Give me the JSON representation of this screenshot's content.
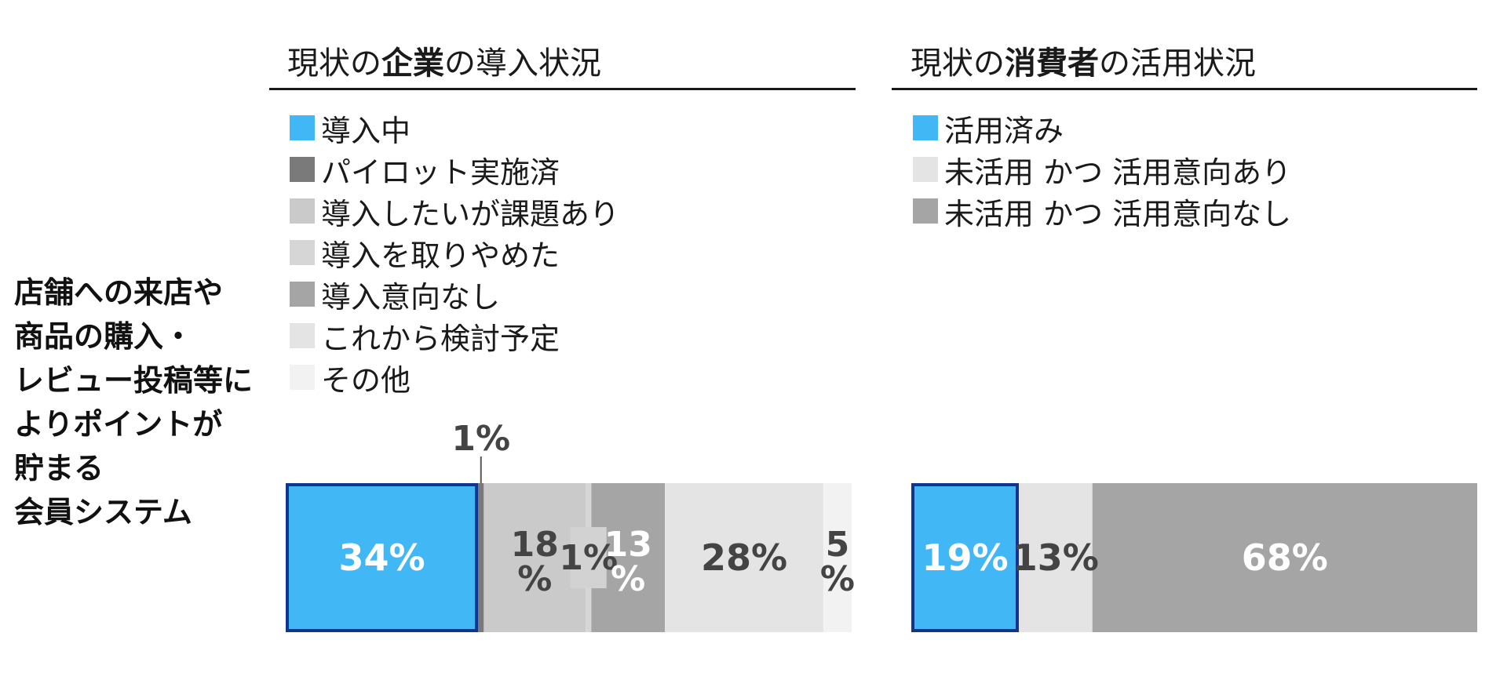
{
  "row_label": [
    "店舗への来店や",
    "商品の購入・",
    "レビュー投稿等に",
    "よりポイントが",
    "貯まる",
    "会員システム"
  ],
  "chart_data": [
    {
      "type": "bar",
      "title": {
        "pre": "現状の",
        "bold": "企業",
        "post": "の導入状況"
      },
      "categories": [
        "導入中",
        "パイロット実施済",
        "導入したいが課題あり",
        "導入を取りやめた",
        "導入意向なし",
        "これから検討予定",
        "その他"
      ],
      "values": [
        34,
        1,
        18,
        1,
        13,
        28,
        5
      ],
      "value_labels": [
        [
          "34%"
        ],
        [
          "1%"
        ],
        [
          "18",
          "%"
        ],
        [
          "1%"
        ],
        [
          "13",
          "%"
        ],
        [
          "28%"
        ],
        [
          "5",
          "%"
        ]
      ],
      "colors": [
        "#41b7f5",
        "#7a7a7a",
        "#cacaca",
        "#d6d6d6",
        "#a5a5a5",
        "#e4e4e4",
        "#f2f2f2"
      ],
      "label_colors": [
        "#ffffff",
        "#444444",
        "#444444",
        "#444444",
        "#ffffff",
        "#444444",
        "#444444"
      ],
      "highlight_border": "#10358c",
      "legend_placement": "top-left"
    },
    {
      "type": "bar",
      "title": {
        "pre": "現状の",
        "bold": "消費者",
        "post": "の活用状況"
      },
      "categories": [
        "活用済み",
        "未活用 かつ 活用意向あり",
        "未活用 かつ 活用意向なし"
      ],
      "values": [
        19,
        13,
        68
      ],
      "value_labels": [
        [
          "19%"
        ],
        [
          "13%"
        ],
        [
          "68%"
        ]
      ],
      "colors": [
        "#41b7f5",
        "#e4e4e4",
        "#a5a5a5"
      ],
      "label_colors": [
        "#ffffff",
        "#444444",
        "#ffffff"
      ],
      "highlight_border": "#10358c",
      "legend_placement": "top-left"
    }
  ]
}
